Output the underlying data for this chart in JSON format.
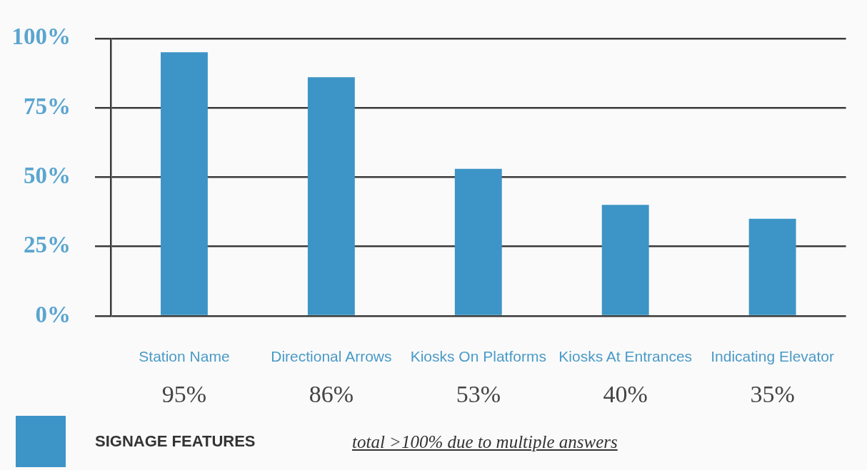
{
  "chart_data": {
    "type": "bar",
    "categories": [
      "Station Name",
      "Directional Arrows",
      "Kiosks On Platforms",
      "Kiosks At Entrances",
      "Indicating Elevator"
    ],
    "series": [
      {
        "name": "SIGNAGE FEATURES",
        "color": "#3d94c6",
        "values": [
          95,
          86,
          53,
          40,
          35
        ],
        "value_labels": [
          "95%",
          "86%",
          "53%",
          "40%",
          "35%"
        ]
      }
    ],
    "ylim": [
      0,
      100
    ],
    "yticks": [
      {
        "value": 0,
        "label": "0%"
      },
      {
        "value": 25,
        "label": "25%"
      },
      {
        "value": 50,
        "label": "50%"
      },
      {
        "value": 75,
        "label": "75%"
      },
      {
        "value": 100,
        "label": "100%"
      }
    ],
    "grid": "y",
    "legend": "bottom left",
    "annotations": [
      "total >100% due to multiple answers"
    ]
  }
}
